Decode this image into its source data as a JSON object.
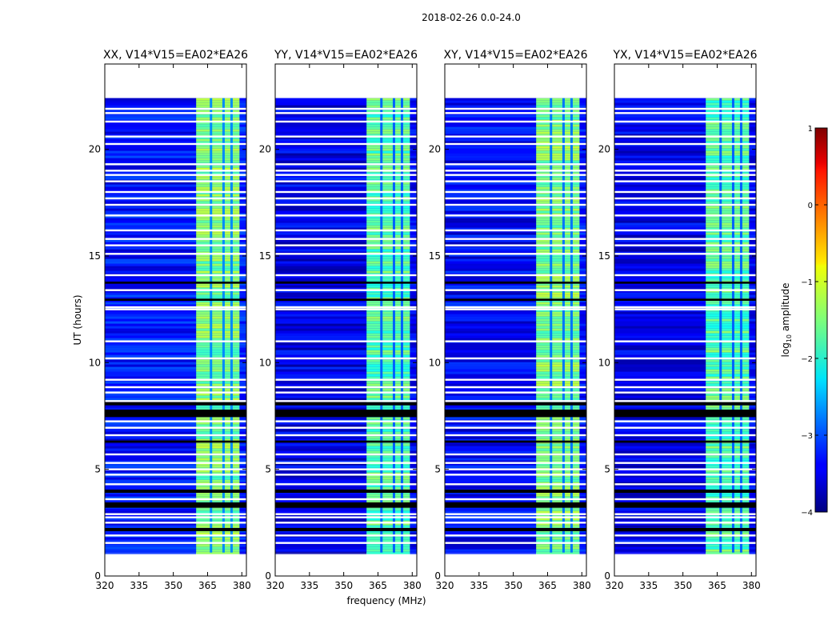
{
  "chart_data": {
    "type": "heatmap",
    "suptitle": "2018-02-26 0.0-24.0",
    "xlabel": "frequency (MHz)",
    "ylabel": "UT (hours)",
    "xlim": [
      320,
      382
    ],
    "ylim": [
      0,
      24
    ],
    "xticks": [
      320,
      335,
      350,
      365,
      380
    ],
    "yticks": [
      0,
      5,
      10,
      15,
      20
    ],
    "data_rows_ut": [
      1.1,
      22.4
    ],
    "panels": [
      {
        "title": "XX, V14*V15=EA02*EA26",
        "band_level": -1.5,
        "bg_level": -3.3
      },
      {
        "title": "YY, V14*V15=EA02*EA26",
        "band_level": -1.7,
        "bg_level": -3.5
      },
      {
        "title": "XY, V14*V15=EA02*EA26",
        "band_level": -1.5,
        "bg_level": -3.4
      },
      {
        "title": "YX, V14*V15=EA02*EA26",
        "band_level": -1.7,
        "bg_level": -3.5
      }
    ],
    "bright_band_mhz": [
      360,
      379
    ],
    "band_gaps_mhz": [
      366.5,
      372,
      375.5
    ],
    "colorbar": {
      "label": "log10 amplitude",
      "label_main": "log",
      "label_sub": "10",
      "label_rest": " amplitude",
      "min": -4,
      "max": 1,
      "ticks": [
        1,
        0,
        -1,
        -2,
        -3,
        -4
      ],
      "tick_labels": [
        "1",
        "0",
        "−1",
        "−2",
        "−3",
        "−4"
      ],
      "colormap": "jet"
    },
    "flagged_white_ut": [
      21.9,
      21.7,
      21.3,
      20.6,
      20.25,
      19.3,
      19.0,
      18.8,
      18.5,
      18.0,
      17.7,
      17.4,
      16.9,
      16.2,
      15.8,
      15.5,
      15.1,
      14.1,
      13.4,
      12.6,
      12.5,
      11.0,
      10.2,
      9.2,
      8.85,
      8.6,
      8.2,
      7.25,
      6.95,
      6.6,
      5.7,
      5.3,
      5.0,
      4.75,
      4.3,
      3.6,
      2.9,
      2.75,
      2.5,
      1.9,
      1.55
    ],
    "flagged_dark_ut": [
      [
        7.45,
        7.8
      ],
      [
        8.0,
        8.15
      ],
      [
        3.2,
        3.45
      ],
      [
        3.9,
        4.05
      ],
      [
        6.25,
        6.35
      ],
      [
        13.7,
        13.8
      ],
      [
        12.9,
        13.0
      ],
      [
        2.1,
        2.25
      ]
    ]
  }
}
